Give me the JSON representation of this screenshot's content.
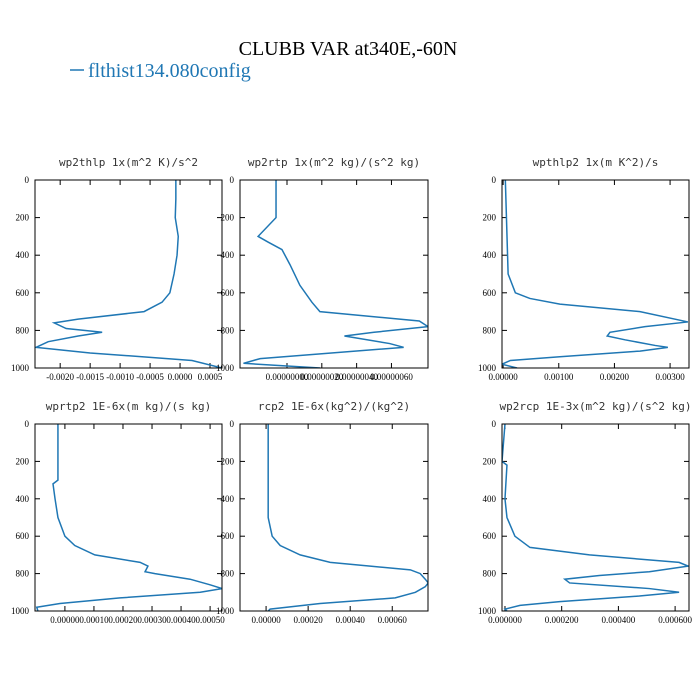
{
  "title": "CLUBB VAR at340E,-60N",
  "legend": {
    "name": "flthist134.080config",
    "color": "#1f77b4"
  },
  "chart_data": [
    {
      "type": "line",
      "title": "wp2thlp  1x(m^2 K)/s^2",
      "color": "#1f77b4",
      "levels": [
        0,
        100,
        200,
        300,
        400,
        500,
        600,
        650,
        700,
        740,
        760,
        790,
        810,
        830,
        860,
        890,
        920,
        960,
        1000
      ],
      "values": [
        -7e-05,
        -7e-05,
        -8e-05,
        -3e-05,
        -5e-05,
        -0.0001,
        -0.00017,
        -0.0003,
        -0.0006,
        -0.0017,
        -0.0021,
        -0.0019,
        -0.0013,
        -0.0017,
        -0.0022,
        -0.0024,
        -0.0015,
        0.0002,
        0.0007
      ],
      "xlim": [
        -0.00242,
        0.0007
      ],
      "xticks": [
        {
          "value": -0.002,
          "label": "-0.0020"
        },
        {
          "value": -0.0015,
          "label": "-0.0015"
        },
        {
          "value": -0.001,
          "label": "-0.0010"
        },
        {
          "value": -0.0005,
          "label": "-0.0005"
        },
        {
          "value": 0,
          "label": "0.0000"
        },
        {
          "value": 0.0005,
          "label": "0.0005"
        }
      ],
      "ylim": [
        0,
        1000
      ],
      "y_inverted": true,
      "yticks": [
        0,
        200,
        400,
        600,
        800,
        1000
      ]
    },
    {
      "type": "line",
      "title": "wp2rtp  1x(m^2 kg)/(s^2 kg)",
      "color": "#1f77b4",
      "levels": [
        0,
        200,
        300,
        330,
        370,
        450,
        560,
        650,
        700,
        750,
        780,
        810,
        830,
        870,
        890,
        950,
        975,
        1000
      ],
      "values": [
        -6.3e-08,
        -6.3e-08,
        -1.66e-07,
        -1.09e-07,
        -2.9e-08,
        1.7e-08,
        7.4e-08,
        1.43e-07,
        1.89e-07,
        7.6e-07,
        8.1e-07,
        5e-07,
        3.3e-07,
        5.9e-07,
        6.7e-07,
        -1.54e-07,
        -2.5e-07,
        1.9e-07
      ],
      "xlim": [
        -2.7e-07,
        8.1e-07
      ],
      "xticks": [
        {
          "value": 0,
          "label": "0.00000000"
        },
        {
          "value": 2e-07,
          "label": "0.00000020"
        },
        {
          "value": 4e-07,
          "label": "0.00000040"
        },
        {
          "value": 6e-07,
          "label": "0.00000060"
        }
      ],
      "ylim": [
        0,
        1000
      ],
      "y_inverted": true,
      "yticks": [
        0,
        200,
        400,
        600,
        800,
        1000
      ]
    },
    {
      "type": "line",
      "title": "wpthlp2  1x(m K^2)/s",
      "color": "#1f77b4",
      "levels": [
        0,
        500,
        600,
        630,
        660,
        700,
        755,
        780,
        810,
        830,
        850,
        880,
        890,
        910,
        940,
        960,
        980,
        1000
      ],
      "values": [
        4e-05,
        9e-05,
        0.00022,
        0.00048,
        0.00102,
        0.00246,
        0.00332,
        0.00255,
        0.00192,
        0.00187,
        0.00219,
        0.00273,
        0.00296,
        0.00246,
        0.00102,
        0.00013,
        -2e-05,
        0.00025
      ],
      "xlim": [
        -2e-05,
        0.00334
      ],
      "xticks": [
        {
          "value": 0,
          "label": "0.00000"
        },
        {
          "value": 0.001,
          "label": "0.00100"
        },
        {
          "value": 0.002,
          "label": "0.00200"
        },
        {
          "value": 0.003,
          "label": "0.00300"
        }
      ],
      "ylim": [
        0,
        1000
      ],
      "y_inverted": true,
      "yticks": [
        0,
        200,
        400,
        600,
        800,
        1000
      ]
    },
    {
      "type": "line",
      "title": "wprtp2  1E-6x(m kg)/(s kg)",
      "color": "#1f77b4",
      "levels": [
        0,
        300,
        320,
        400,
        500,
        600,
        650,
        700,
        740,
        760,
        790,
        800,
        830,
        860,
        880,
        900,
        930,
        960,
        980,
        1000
      ],
      "values": [
        -2.4e-05,
        -2.4e-05,
        -4.1e-05,
        -3.4e-05,
        -2.4e-05,
        0,
        3.4e-05,
        0.000103,
        0.000259,
        0.000286,
        0.000276,
        0.00031,
        0.000431,
        0.0005,
        0.000541,
        0.000466,
        0.00019,
        -1.7e-05,
        -9.7e-05,
        -9.3e-05
      ],
      "xlim": [
        -0.000103,
        0.000541
      ],
      "xticks": [
        {
          "value": 0,
          "label": "0.00000"
        },
        {
          "value": 0.0001,
          "label": "0.00010"
        },
        {
          "value": 0.0002,
          "label": "0.00020"
        },
        {
          "value": 0.0003,
          "label": "0.00030"
        },
        {
          "value": 0.0004,
          "label": "0.00040"
        },
        {
          "value": 0.0005,
          "label": "0.00050"
        }
      ],
      "ylim": [
        0,
        1000
      ],
      "y_inverted": true,
      "yticks": [
        0,
        200,
        400,
        600,
        800,
        1000
      ]
    },
    {
      "type": "line",
      "title": "rcp2  1E-6x(kg^2)/(kg^2)",
      "color": "#1f77b4",
      "levels": [
        0,
        500,
        600,
        650,
        700,
        740,
        760,
        780,
        800,
        830,
        850,
        870,
        900,
        930,
        960,
        990,
        1000
      ],
      "values": [
        1e-05,
        1e-05,
        2.9e-05,
        6.7e-05,
        0.000162,
        0.000305,
        0.000495,
        0.000686,
        0.000733,
        0.000757,
        0.000771,
        0.000757,
        0.00071,
        0.000614,
        0.000257,
        1.9e-05,
        1e-05
      ],
      "xlim": [
        -0.000124,
        0.00077
      ],
      "xticks": [
        {
          "value": 0,
          "label": "0.00000"
        },
        {
          "value": 0.0002,
          "label": "0.00020"
        },
        {
          "value": 0.0004,
          "label": "0.00040"
        },
        {
          "value": 0.0006,
          "label": "0.00060"
        }
      ],
      "ylim": [
        0,
        1000
      ],
      "y_inverted": true,
      "yticks": [
        0,
        200,
        400,
        600,
        800,
        1000
      ]
    },
    {
      "type": "line",
      "title": "wp2rcp  1E-3x(m^2 kg)/(s^2 kg)",
      "color": "#1f77b4",
      "levels": [
        0,
        200,
        220,
        400,
        500,
        600,
        660,
        700,
        740,
        760,
        790,
        810,
        830,
        850,
        880,
        900,
        920,
        950,
        970,
        990,
        1000
      ],
      "values": [
        0,
        -1.05e-05,
        7e-06,
        0,
        7e-06,
        3.5e-05,
        8.8e-05,
        0.000298,
        0.000614,
        0.000646,
        0.000509,
        0.000333,
        0.000211,
        0.000228,
        0.000509,
        0.000614,
        0.000474,
        0.000193,
        5.3e-05,
        0,
        7e-06
      ],
      "xlim": [
        -1.05e-05,
        0.000649
      ],
      "xticks": [
        {
          "value": 0,
          "label": "0.000000"
        },
        {
          "value": 0.0002,
          "label": "0.000200"
        },
        {
          "value": 0.0004,
          "label": "0.000400"
        },
        {
          "value": 0.0006,
          "label": "0.000600"
        }
      ],
      "ylim": [
        0,
        1000
      ],
      "y_inverted": true,
      "yticks": [
        0,
        200,
        400,
        600,
        800,
        1000
      ]
    }
  ]
}
